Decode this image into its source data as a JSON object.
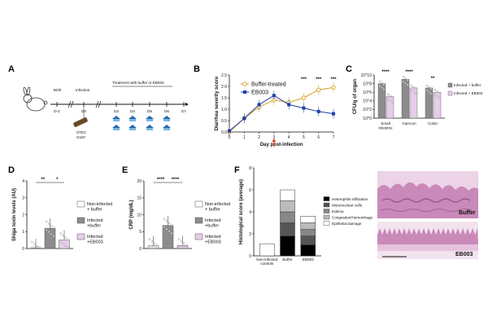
{
  "panels": {
    "A": "A",
    "B": "B",
    "C": "C",
    "D": "D",
    "E": "E",
    "F": "F"
  },
  "timeline": {
    "birth": "Birth",
    "infection": "Infection",
    "treatment": "Treatment with buffer or EB003",
    "days": [
      "D-2",
      "D0",
      "D3",
      "D4",
      "D5",
      "D6",
      "D7"
    ],
    "stec": "STEC",
    "strain": "O157"
  },
  "chart_data": [
    {
      "panel": "B",
      "type": "line",
      "ylabel": "Diarrhea severity score",
      "xlabel": "Day post-infection",
      "x": [
        0,
        1,
        2,
        3,
        4,
        5,
        6,
        7
      ],
      "ylim": [
        0,
        2.5
      ],
      "yticks": [
        "0.0",
        "0.5",
        "1.0",
        "1.5",
        "2.0",
        "2.5"
      ],
      "xticks": [
        "0",
        "1",
        "2",
        "3",
        "4",
        "5",
        "6",
        "7"
      ],
      "series": [
        {
          "name": "Buffer-treated",
          "color": "#d4a020",
          "marker": "open-circle",
          "values": [
            0.0,
            0.6,
            1.1,
            1.4,
            1.3,
            1.5,
            1.85,
            1.95
          ]
        },
        {
          "name": "EB003",
          "color": "#1e3fa8",
          "marker": "square",
          "values": [
            0.05,
            0.6,
            1.2,
            1.6,
            1.2,
            1.05,
            0.9,
            0.8
          ]
        }
      ],
      "stars": [
        "***",
        "***",
        "***"
      ],
      "legend": "top-left"
    },
    {
      "panel": "C",
      "type": "bar",
      "ylabel": "CFU/g of organ",
      "categories": [
        "Small intestine",
        "Caecum",
        "Colon"
      ],
      "yticks": [
        "10^0",
        "10^2",
        "10^4",
        "10^6",
        "10^8",
        "10^10"
      ],
      "log": true,
      "series": [
        {
          "name": "Infected + buffer",
          "color": "#8c8c8c",
          "values": [
            100000000.0,
            1000000000.0,
            10000000.0
          ]
        },
        {
          "name": "Infected + EB003",
          "color": "#e6cdea",
          "values": [
            100000.0,
            10000000.0,
            1000000.0
          ]
        }
      ],
      "stars": [
        "****",
        "****",
        "**"
      ],
      "legend": "right"
    },
    {
      "panel": "D",
      "type": "bar",
      "ylabel": "Shiga toxin levels (AU)",
      "ylim": [
        0,
        4
      ],
      "yticks": [
        "0",
        "1",
        "2",
        "3",
        "4"
      ],
      "categories": [
        "Non-infected + buffer",
        "Infected +buffer",
        "Infected +EB003"
      ],
      "values": [
        0.0,
        1.2,
        0.5
      ],
      "colors": [
        "#ffffff",
        "#8c8c8c",
        "#e6cdea"
      ],
      "stars": [
        "**",
        "*"
      ],
      "legend": "right"
    },
    {
      "panel": "E",
      "type": "bar",
      "ylabel": "CRP (mg/dL)",
      "ylim": [
        0,
        20
      ],
      "yticks": [
        "0",
        "5",
        "10",
        "15",
        "20"
      ],
      "categories": [
        "Non-infected + buffer",
        "Infected +buffer",
        "Infected +EB003"
      ],
      "values": [
        0.8,
        6.8,
        0.9
      ],
      "colors": [
        "#ffffff",
        "#8c8c8c",
        "#e6cdea"
      ],
      "stars": [
        "****",
        "****"
      ],
      "legend": "right"
    },
    {
      "panel": "F",
      "type": "bar",
      "stacked": true,
      "ylabel": "Histological score (average)",
      "ylim": [
        0,
        8
      ],
      "yticks": [
        "0",
        "2",
        "4",
        "6",
        "8"
      ],
      "categories": [
        "Non-infected controls",
        "Buffer",
        "EB003"
      ],
      "series": [
        {
          "name": "Heterophils infiltration",
          "color": "#000000",
          "values": [
            0.0,
            1.8,
            1.0
          ]
        },
        {
          "name": "Mononuclear cells",
          "color": "#555555",
          "values": [
            0.0,
            1.2,
            0.8
          ]
        },
        {
          "name": "Edema",
          "color": "#888888",
          "values": [
            0.0,
            1.0,
            0.6
          ]
        },
        {
          "name": "Congestion/Hemorrhage",
          "color": "#bbbbbb",
          "values": [
            0.0,
            1.0,
            0.6
          ]
        },
        {
          "name": "Epithelial damage",
          "color": "#ffffff",
          "values": [
            1.1,
            1.0,
            0.6
          ]
        }
      ],
      "legend": "right"
    }
  ],
  "histology": {
    "top_label": "Buffer",
    "bottom_label": "EB003"
  },
  "colors": {
    "gray_bar": "#8c8c8c",
    "pink_bar": "#e6cdea",
    "buffer_line": "#d4a020",
    "eb003_line": "#1e3fa8",
    "arrow": "#e0402a",
    "tissue": "#c98ab9"
  }
}
